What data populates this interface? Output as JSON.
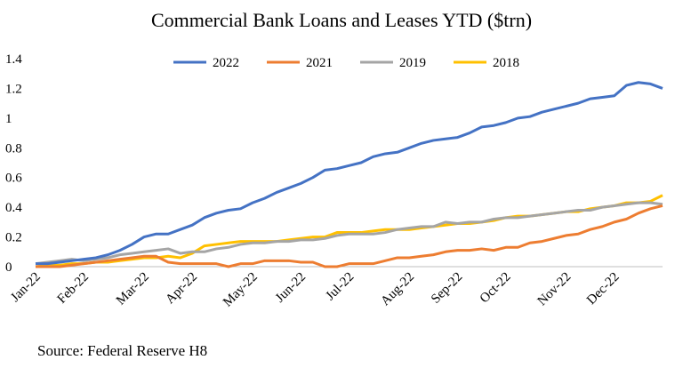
{
  "chart_data": {
    "type": "line",
    "title": "Commercial Bank Loans and Leases YTD ($trn)",
    "source": "Source: Federal Reserve H8",
    "categories": [
      "Jan-22",
      null,
      null,
      null,
      "Feb-22",
      null,
      null,
      null,
      null,
      "Mar-22",
      null,
      null,
      null,
      "Apr-22",
      null,
      null,
      null,
      null,
      "May-22",
      null,
      null,
      null,
      "Jun-22",
      null,
      null,
      null,
      "Jul-22",
      null,
      null,
      null,
      null,
      "Aug-22",
      null,
      null,
      null,
      "Sep-22",
      null,
      null,
      null,
      "Oct-22",
      null,
      null,
      null,
      null,
      "Nov-22",
      null,
      null,
      null,
      "Dec-22",
      null,
      null,
      null,
      null
    ],
    "series": [
      {
        "name": "2022",
        "color": "#4472c4",
        "values": [
          0.02,
          0.02,
          0.03,
          0.04,
          0.05,
          0.06,
          0.08,
          0.11,
          0.15,
          0.2,
          0.22,
          0.22,
          0.25,
          0.28,
          0.33,
          0.36,
          0.38,
          0.39,
          0.43,
          0.46,
          0.5,
          0.53,
          0.56,
          0.6,
          0.65,
          0.66,
          0.68,
          0.7,
          0.74,
          0.76,
          0.77,
          0.8,
          0.83,
          0.85,
          0.86,
          0.87,
          0.9,
          0.94,
          0.95,
          0.97,
          1.0,
          1.01,
          1.04,
          1.06,
          1.08,
          1.1,
          1.13,
          1.14,
          1.15,
          1.22,
          1.24,
          1.23,
          1.2
        ]
      },
      {
        "name": "2021",
        "color": "#ed7d31",
        "values": [
          0,
          0,
          0,
          0.01,
          0.02,
          0.03,
          0.04,
          0.05,
          0.06,
          0.07,
          0.07,
          0.03,
          0.02,
          0.02,
          0.02,
          0.02,
          0,
          0.02,
          0.02,
          0.04,
          0.04,
          0.04,
          0.03,
          0.03,
          0,
          0,
          0.02,
          0.02,
          0.02,
          0.04,
          0.06,
          0.06,
          0.07,
          0.08,
          0.1,
          0.11,
          0.11,
          0.12,
          0.11,
          0.13,
          0.13,
          0.16,
          0.17,
          0.19,
          0.21,
          0.22,
          0.25,
          0.27,
          0.3,
          0.32,
          0.36,
          0.39,
          0.41
        ]
      },
      {
        "name": "2019",
        "color": "#a5a5a5",
        "values": [
          0.02,
          0.03,
          0.04,
          0.05,
          0.04,
          0.05,
          0.06,
          0.08,
          0.09,
          0.1,
          0.11,
          0.12,
          0.09,
          0.1,
          0.1,
          0.12,
          0.13,
          0.15,
          0.16,
          0.16,
          0.17,
          0.17,
          0.18,
          0.18,
          0.19,
          0.21,
          0.22,
          0.22,
          0.22,
          0.23,
          0.25,
          0.26,
          0.27,
          0.27,
          0.3,
          0.29,
          0.3,
          0.3,
          0.32,
          0.33,
          0.33,
          0.34,
          0.35,
          0.36,
          0.37,
          0.38,
          0.38,
          0.4,
          0.41,
          0.42,
          0.43,
          0.43,
          0.42
        ]
      },
      {
        "name": "2018",
        "color": "#ffc000",
        "values": [
          0,
          0.01,
          0.01,
          0.02,
          0.02,
          0.03,
          0.03,
          0.04,
          0.05,
          0.06,
          0.06,
          0.07,
          0.06,
          0.09,
          0.14,
          0.15,
          0.16,
          0.17,
          0.17,
          0.17,
          0.17,
          0.18,
          0.19,
          0.2,
          0.2,
          0.23,
          0.23,
          0.23,
          0.24,
          0.25,
          0.25,
          0.25,
          0.26,
          0.27,
          0.28,
          0.29,
          0.29,
          0.3,
          0.31,
          0.33,
          0.34,
          0.34,
          0.35,
          0.36,
          0.37,
          0.37,
          0.39,
          0.4,
          0.41,
          0.43,
          0.43,
          0.44,
          0.48
        ]
      }
    ],
    "ylim": [
      0,
      1.4
    ],
    "yticks": [
      0,
      0.2,
      0.4,
      0.6,
      0.8,
      1,
      1.2,
      1.4
    ],
    "grid": false,
    "legend": "top"
  }
}
